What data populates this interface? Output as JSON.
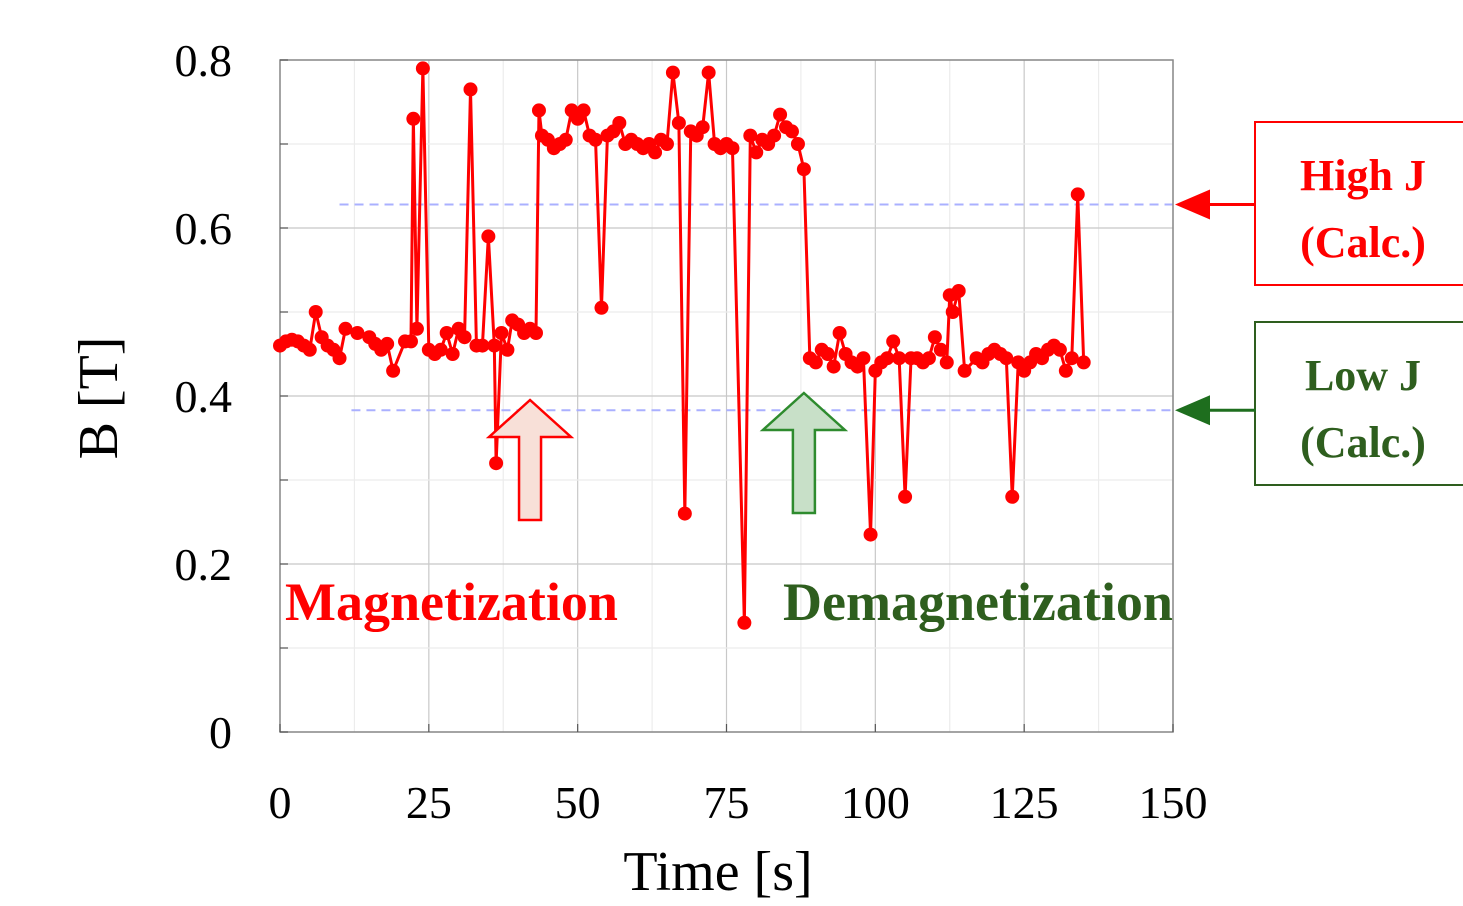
{
  "chart_data": {
    "type": "line",
    "title": "",
    "xlabel": "Time [s]",
    "ylabel": "B [T]",
    "xlim": [
      0,
      150
    ],
    "ylim": [
      0,
      0.8
    ],
    "x_ticks": [
      0,
      25,
      50,
      75,
      100,
      125,
      150
    ],
    "x_tick_labels": [
      "0",
      "25",
      "50",
      "75",
      "100",
      "125",
      "150"
    ],
    "y_ticks": [
      0,
      0.2,
      0.4,
      0.6,
      0.8
    ],
    "y_tick_labels": [
      "0",
      "0.2",
      "0.4",
      "0.6",
      "0.8"
    ],
    "grid": true,
    "marker": "circle",
    "series": [
      {
        "color": "#ff0000",
        "points": [
          [
            0,
            0.46
          ],
          [
            1,
            0.465
          ],
          [
            2,
            0.467
          ],
          [
            3,
            0.465
          ],
          [
            4,
            0.46
          ],
          [
            5,
            0.455
          ],
          [
            6,
            0.5
          ],
          [
            7,
            0.47
          ],
          [
            8,
            0.46
          ],
          [
            9,
            0.455
          ],
          [
            10,
            0.445
          ],
          [
            11,
            0.48
          ],
          [
            13,
            0.475
          ],
          [
            15,
            0.47
          ],
          [
            16,
            0.462
          ],
          [
            17,
            0.455
          ],
          [
            18,
            0.462
          ],
          [
            19,
            0.43
          ],
          [
            21,
            0.465
          ],
          [
            22,
            0.465
          ],
          [
            22.4,
            0.73
          ],
          [
            23,
            0.48
          ],
          [
            24,
            0.79
          ],
          [
            25,
            0.455
          ],
          [
            26,
            0.45
          ],
          [
            27,
            0.455
          ],
          [
            28,
            0.475
          ],
          [
            29,
            0.45
          ],
          [
            30,
            0.48
          ],
          [
            31,
            0.47
          ],
          [
            32,
            0.765
          ],
          [
            33,
            0.46
          ],
          [
            34,
            0.46
          ],
          [
            35,
            0.59
          ],
          [
            36,
            0.46
          ],
          [
            36.3,
            0.32
          ],
          [
            37.2,
            0.475
          ],
          [
            38.2,
            0.455
          ],
          [
            39,
            0.49
          ],
          [
            40,
            0.485
          ],
          [
            41,
            0.475
          ],
          [
            42,
            0.48
          ],
          [
            43,
            0.475
          ],
          [
            43.5,
            0.74
          ],
          [
            44,
            0.71
          ],
          [
            45,
            0.705
          ],
          [
            46,
            0.695
          ],
          [
            47,
            0.7
          ],
          [
            48,
            0.705
          ],
          [
            49,
            0.74
          ],
          [
            50,
            0.73
          ],
          [
            51,
            0.74
          ],
          [
            52,
            0.71
          ],
          [
            53,
            0.705
          ],
          [
            54,
            0.505
          ],
          [
            55,
            0.71
          ],
          [
            56,
            0.715
          ],
          [
            57,
            0.725
          ],
          [
            58,
            0.7
          ],
          [
            59,
            0.705
          ],
          [
            60,
            0.7
          ],
          [
            61,
            0.695
          ],
          [
            62,
            0.7
          ],
          [
            63,
            0.69
          ],
          [
            64,
            0.705
          ],
          [
            65,
            0.7
          ],
          [
            66,
            0.785
          ],
          [
            67,
            0.725
          ],
          [
            68,
            0.26
          ],
          [
            69,
            0.715
          ],
          [
            70,
            0.71
          ],
          [
            71,
            0.72
          ],
          [
            72,
            0.785
          ],
          [
            73,
            0.7
          ],
          [
            74,
            0.695
          ],
          [
            75,
            0.7
          ],
          [
            76,
            0.695
          ],
          [
            78,
            0.13
          ],
          [
            79,
            0.71
          ],
          [
            80,
            0.69
          ],
          [
            81,
            0.705
          ],
          [
            82,
            0.7
          ],
          [
            83,
            0.71
          ],
          [
            84,
            0.735
          ],
          [
            85,
            0.72
          ],
          [
            86,
            0.715
          ],
          [
            87,
            0.7
          ],
          [
            88,
            0.67
          ],
          [
            89,
            0.445
          ],
          [
            90,
            0.44
          ],
          [
            91,
            0.455
          ],
          [
            92,
            0.45
          ],
          [
            93,
            0.435
          ],
          [
            94,
            0.475
          ],
          [
            95,
            0.45
          ],
          [
            96,
            0.44
          ],
          [
            97,
            0.435
          ],
          [
            98,
            0.445
          ],
          [
            99.2,
            0.235
          ],
          [
            100,
            0.43
          ],
          [
            101,
            0.44
          ],
          [
            102,
            0.445
          ],
          [
            103,
            0.465
          ],
          [
            104,
            0.445
          ],
          [
            105,
            0.28
          ],
          [
            106,
            0.445
          ],
          [
            107,
            0.445
          ],
          [
            108,
            0.44
          ],
          [
            109,
            0.445
          ],
          [
            110,
            0.47
          ],
          [
            111,
            0.455
          ],
          [
            112,
            0.44
          ],
          [
            112.5,
            0.52
          ],
          [
            113,
            0.5
          ],
          [
            114,
            0.525
          ],
          [
            115,
            0.43
          ],
          [
            117,
            0.445
          ],
          [
            118,
            0.44
          ],
          [
            119,
            0.45
          ],
          [
            120,
            0.455
          ],
          [
            121,
            0.45
          ],
          [
            122,
            0.445
          ],
          [
            123,
            0.28
          ],
          [
            124,
            0.44
          ],
          [
            125,
            0.43
          ],
          [
            126,
            0.44
          ],
          [
            127,
            0.45
          ],
          [
            128,
            0.445
          ],
          [
            129,
            0.455
          ],
          [
            130,
            0.46
          ],
          [
            131,
            0.455
          ],
          [
            132,
            0.43
          ],
          [
            133,
            0.445
          ],
          [
            134,
            0.64
          ],
          [
            135,
            0.44
          ]
        ]
      }
    ],
    "reference_lines": [
      {
        "name": "High J",
        "y": 0.628,
        "x_start": 10,
        "color": "#aab0ff",
        "dash": true
      },
      {
        "name": "Low J",
        "y": 0.383,
        "x_start": 12,
        "color": "#aab0ff",
        "dash": true
      }
    ],
    "annotations": [
      {
        "text": "Magnetization",
        "color": "#ff0000",
        "arrow_x": 42,
        "arrow_fill": "#f8e0d8",
        "arrow_stroke": "#ff0000"
      },
      {
        "text": "Demagnetization",
        "color": "#2e5e1e",
        "arrow_x": 88,
        "arrow_fill": "#c8e0c8",
        "arrow_stroke": "#2e8b2e"
      }
    ],
    "side_labels": [
      {
        "line1": "High J",
        "line2": "(Calc.)",
        "color": "#ff0000",
        "y": 0.628
      },
      {
        "line1": "Low J",
        "line2": "(Calc.)",
        "color": "#2e5e1e",
        "arrow_color": "#1e6e1e",
        "y": 0.383
      }
    ]
  }
}
